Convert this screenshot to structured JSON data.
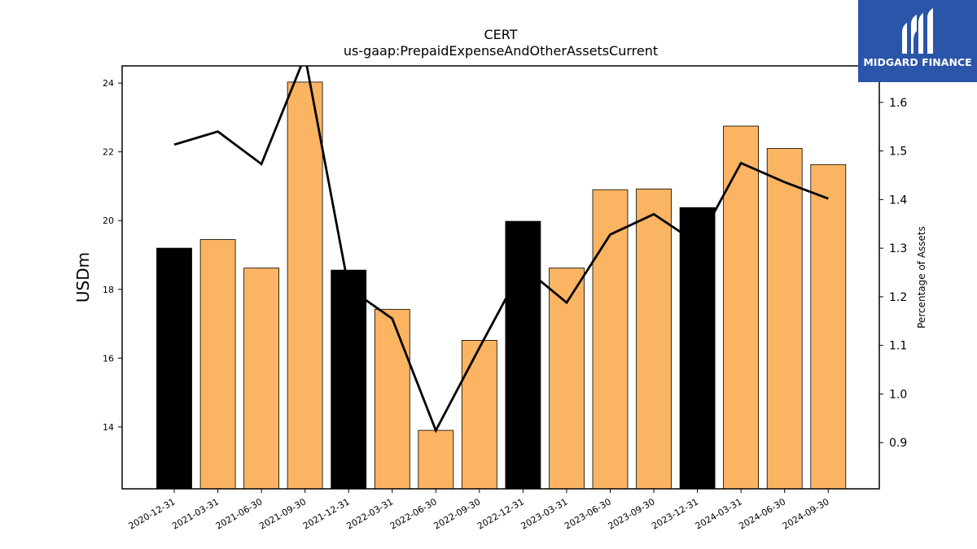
{
  "chart_data": {
    "type": "bar",
    "title": "CERT",
    "subtitle": "us-gaap:PrepaidExpenseAndOtherAssetsCurrent",
    "ylabel": "USDm",
    "y2label": "Percentage of Assets",
    "categories": [
      "2020-12-31",
      "2021-03-31",
      "2021-06-30",
      "2021-09-30",
      "2021-12-31",
      "2022-03-31",
      "2022-06-30",
      "2022-09-30",
      "2022-12-31",
      "2023-03-31",
      "2023-06-30",
      "2023-09-30",
      "2023-12-31",
      "2024-03-31",
      "2024-06-30",
      "2024-09-30"
    ],
    "series": [
      {
        "kind": "bar",
        "values": [
          19.2,
          19.45,
          18.62,
          24.03,
          18.56,
          17.42,
          13.9,
          16.52,
          19.98,
          18.62,
          20.9,
          20.92,
          20.38,
          22.75,
          22.1,
          21.63
        ],
        "colors": [
          "#000000",
          "#fbb462",
          "#fbb462",
          "#fbb462",
          "#000000",
          "#fbb462",
          "#fbb462",
          "#fbb462",
          "#000000",
          "#fbb462",
          "#fbb462",
          "#fbb462",
          "#000000",
          "#fbb462",
          "#fbb462",
          "#fbb462"
        ]
      },
      {
        "kind": "line",
        "axis": "right",
        "color": "#000000",
        "values": [
          1.513,
          1.54,
          1.473,
          1.695,
          1.218,
          1.155,
          0.925,
          1.095,
          1.262,
          1.188,
          1.328,
          1.37,
          1.31,
          1.475,
          1.436,
          1.402
        ]
      }
    ],
    "ylim": [
      12.2,
      24.5
    ],
    "y2lim": [
      0.805,
      1.675
    ],
    "yticks": [
      14,
      16,
      18,
      20,
      22,
      24
    ],
    "y2ticks": [
      0.9,
      1.0,
      1.1,
      1.2,
      1.3,
      1.4,
      1.5,
      1.6
    ],
    "y2tick_labels": [
      "0.9",
      "1.0",
      "1.1",
      "1.2",
      "1.3",
      "1.4",
      "1.5",
      "1.6"
    ],
    "grid": false,
    "legend": "none"
  },
  "logo": {
    "text": "MIDGARD FINANCE",
    "background": "#2a55a8"
  }
}
